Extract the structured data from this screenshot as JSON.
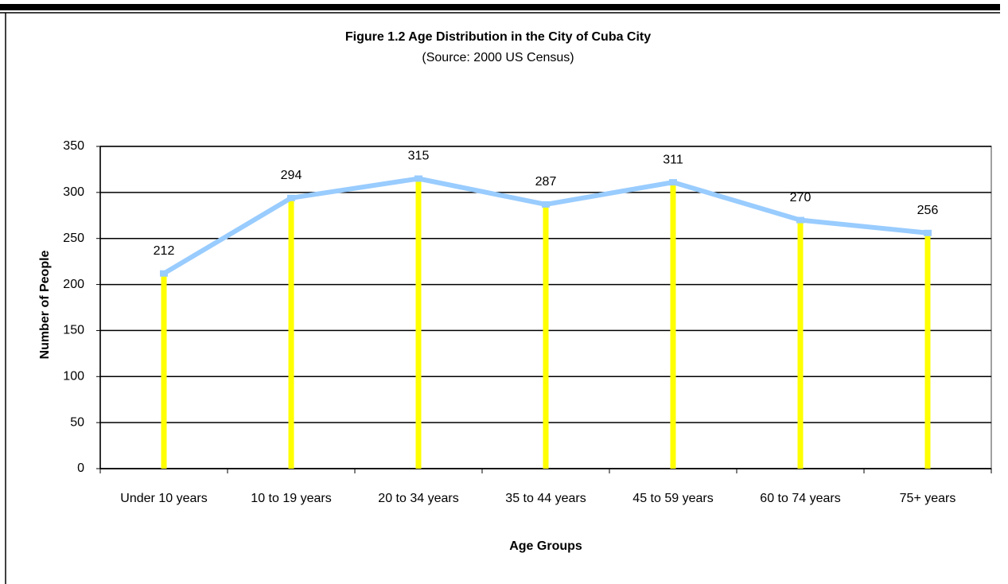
{
  "chart_data": {
    "type": "line",
    "title": "Figure 1.2  Age  Distribution in the City of Cuba City",
    "subtitle": "(Source: 2000 US Census)",
    "x_label": "Age Groups",
    "y_label": "Number of People",
    "categories": [
      "Under 10 years",
      "10 to 19 years",
      "20 to 34 years",
      "35 to 44 years",
      "45 to 59 years",
      "60 to 74 years",
      "75+ years"
    ],
    "series": [
      {
        "name": "Number of People",
        "color": "#99ccff",
        "values": [
          212,
          294,
          315,
          287,
          311,
          270,
          256
        ]
      }
    ],
    "drop_lines": true,
    "drop_line_color": "#ffff00",
    "ylim": [
      0,
      350
    ],
    "yticks": [
      0,
      50,
      100,
      150,
      200,
      250,
      300,
      350
    ],
    "grid": true
  }
}
